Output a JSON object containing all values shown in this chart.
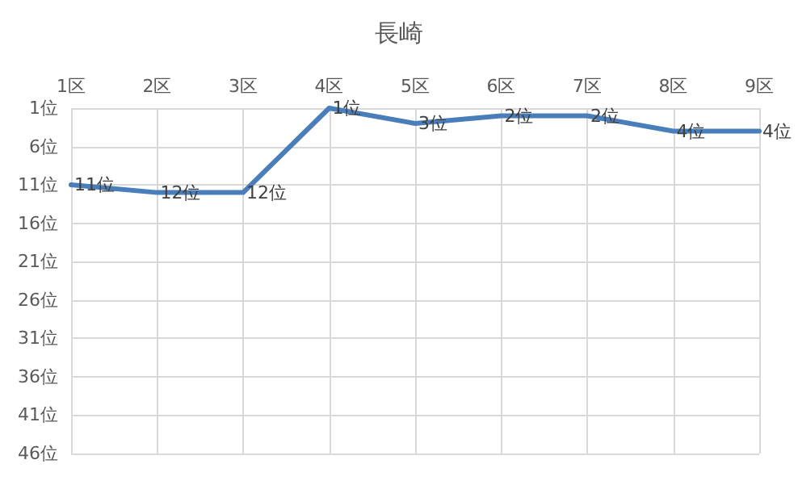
{
  "chart_data": {
    "type": "line",
    "title": "長崎",
    "categories": [
      "1区",
      "2区",
      "3区",
      "4区",
      "5区",
      "6区",
      "7区",
      "8区",
      "9区"
    ],
    "series": [
      {
        "color": "#4a7ebb",
        "values": [
          11,
          12,
          12,
          1,
          3,
          2,
          2,
          4,
          4
        ],
        "value_labels": [
          "11位",
          "12位",
          "12位",
          "1位",
          "3位",
          "2位",
          "2位",
          "4位",
          "4位"
        ]
      }
    ],
    "ylim": [
      46,
      1
    ],
    "yticks": [
      {
        "value": 1,
        "label": "1位"
      },
      {
        "value": 6,
        "label": "6位"
      },
      {
        "value": 11,
        "label": "11位"
      },
      {
        "value": 16,
        "label": "16位"
      },
      {
        "value": 21,
        "label": "21位"
      },
      {
        "value": 26,
        "label": "26位"
      },
      {
        "value": 31,
        "label": "31位"
      },
      {
        "value": 36,
        "label": "36位"
      },
      {
        "value": 41,
        "label": "41位"
      },
      {
        "value": 46,
        "label": "46位"
      }
    ],
    "grid": true,
    "marker": "none",
    "line_style": "solid"
  }
}
